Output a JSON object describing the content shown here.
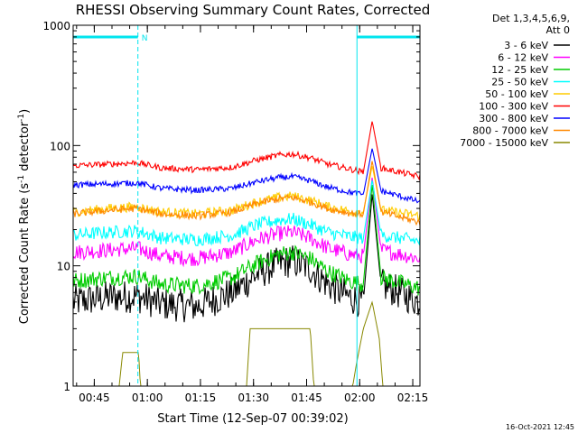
{
  "chart_data": {
    "type": "line",
    "title": "RHESSI Observing Summary Count Rates, Corrected",
    "xlabel": "Start Time (12-Sep-07 00:39:02)",
    "ylabel_main": "Corrected Count Rate (s",
    "ylabel_sup1": "-1",
    "ylabel_mid": " detector",
    "ylabel_sup2": "-1",
    "ylabel_end": ")",
    "yscale": "log",
    "ylim": [
      1,
      1000
    ],
    "xlim": [
      0,
      98
    ],
    "y_ticks": [
      {
        "value": 1,
        "label": "1"
      },
      {
        "value": 10,
        "label": "10"
      },
      {
        "value": 100,
        "label": "100"
      },
      {
        "value": 1000,
        "label": "1000"
      }
    ],
    "x_ticks": [
      {
        "value": 5.97,
        "label": "00:45"
      },
      {
        "value": 20.97,
        "label": "01:00"
      },
      {
        "value": 35.97,
        "label": "01:15"
      },
      {
        "value": 50.97,
        "label": "01:30"
      },
      {
        "value": 65.97,
        "label": "01:45"
      },
      {
        "value": 80.97,
        "label": "02:00"
      },
      {
        "value": 95.97,
        "label": "02:15"
      }
    ],
    "legend": {
      "placement": "right",
      "header1": "Det 1,3,4,5,6,9,",
      "header2": "Att 0"
    },
    "markers": {
      "n_label": "N",
      "night_bars": [
        [
          0,
          18.3
        ],
        [
          80.2,
          98
        ]
      ],
      "dashed_lines": [
        18.3,
        98
      ],
      "solid_lines": [
        80.2
      ]
    },
    "flare": {
      "peak": 84.5
    },
    "series": [
      {
        "name": "3 - 6 keV",
        "color": "#000000",
        "values": [
          [
            0,
            5
          ],
          [
            10,
            5.5
          ],
          [
            18,
            5.6
          ],
          [
            25,
            4.8
          ],
          [
            35,
            4.6
          ],
          [
            45,
            6
          ],
          [
            52,
            8.5
          ],
          [
            58,
            10.5
          ],
          [
            62,
            11
          ],
          [
            67,
            9.5
          ],
          [
            72,
            7
          ],
          [
            78,
            5.5
          ],
          [
            82,
            5
          ],
          [
            84.5,
            40
          ],
          [
            87,
            7
          ],
          [
            98,
            5
          ]
        ]
      },
      {
        "name": "6 - 12 keV",
        "color": "#ff00ff",
        "values": [
          [
            0,
            13
          ],
          [
            10,
            13.5
          ],
          [
            18,
            14
          ],
          [
            25,
            12
          ],
          [
            35,
            11.5
          ],
          [
            45,
            13
          ],
          [
            52,
            16.5
          ],
          [
            58,
            18.5
          ],
          [
            62,
            19
          ],
          [
            67,
            17
          ],
          [
            72,
            14
          ],
          [
            78,
            12.5
          ],
          [
            82,
            12
          ],
          [
            84.5,
            55
          ],
          [
            87,
            13.5
          ],
          [
            98,
            11.5
          ]
        ]
      },
      {
        "name": "12 - 25 keV",
        "color": "#00cc00",
        "values": [
          [
            0,
            7.5
          ],
          [
            10,
            8
          ],
          [
            18,
            8.2
          ],
          [
            25,
            7
          ],
          [
            35,
            6.8
          ],
          [
            45,
            8
          ],
          [
            52,
            10.5
          ],
          [
            58,
            12.5
          ],
          [
            62,
            13
          ],
          [
            67,
            11.5
          ],
          [
            72,
            9
          ],
          [
            78,
            7.5
          ],
          [
            82,
            7
          ],
          [
            84.5,
            48
          ],
          [
            87,
            8
          ],
          [
            98,
            6.5
          ]
        ]
      },
      {
        "name": "25 - 50 keV",
        "color": "#00ffff",
        "values": [
          [
            0,
            18
          ],
          [
            10,
            19
          ],
          [
            18,
            19.5
          ],
          [
            25,
            17
          ],
          [
            35,
            16.5
          ],
          [
            45,
            18
          ],
          [
            52,
            22
          ],
          [
            58,
            24
          ],
          [
            62,
            24.5
          ],
          [
            67,
            22
          ],
          [
            72,
            19
          ],
          [
            78,
            17.5
          ],
          [
            82,
            17
          ],
          [
            84.5,
            52
          ],
          [
            87,
            18
          ],
          [
            98,
            16
          ]
        ]
      },
      {
        "name": "50 - 100 keV",
        "color": "#ffcc00",
        "values": [
          [
            0,
            28
          ],
          [
            10,
            30
          ],
          [
            18,
            31
          ],
          [
            25,
            28
          ],
          [
            35,
            27
          ],
          [
            45,
            29
          ],
          [
            52,
            34
          ],
          [
            58,
            37
          ],
          [
            62,
            38
          ],
          [
            67,
            35
          ],
          [
            72,
            31
          ],
          [
            78,
            28.5
          ],
          [
            82,
            28
          ],
          [
            84.5,
            68
          ],
          [
            87,
            29
          ],
          [
            98,
            26
          ]
        ]
      },
      {
        "name": "100 - 300 keV",
        "color": "#ff0000",
        "values": [
          [
            0,
            68
          ],
          [
            10,
            70
          ],
          [
            18,
            72
          ],
          [
            25,
            65
          ],
          [
            35,
            63
          ],
          [
            45,
            66
          ],
          [
            52,
            76
          ],
          [
            58,
            83
          ],
          [
            62,
            85
          ],
          [
            67,
            79
          ],
          [
            72,
            70
          ],
          [
            78,
            64
          ],
          [
            82,
            60
          ],
          [
            84.5,
            160
          ],
          [
            87,
            65
          ],
          [
            98,
            55
          ]
        ]
      },
      {
        "name": "300 - 800 keV",
        "color": "#0000ff",
        "values": [
          [
            0,
            47
          ],
          [
            10,
            48
          ],
          [
            18,
            49
          ],
          [
            25,
            44
          ],
          [
            35,
            42.5
          ],
          [
            45,
            44
          ],
          [
            52,
            50
          ],
          [
            58,
            54
          ],
          [
            62,
            55
          ],
          [
            67,
            51
          ],
          [
            72,
            45
          ],
          [
            78,
            41
          ],
          [
            82,
            39
          ],
          [
            84.5,
            95
          ],
          [
            87,
            42
          ],
          [
            98,
            34
          ]
        ]
      },
      {
        "name": "800 - 7000 keV",
        "color": "#ff8800",
        "values": [
          [
            0,
            27
          ],
          [
            10,
            29
          ],
          [
            18,
            30
          ],
          [
            25,
            27
          ],
          [
            35,
            26
          ],
          [
            45,
            28
          ],
          [
            52,
            33
          ],
          [
            58,
            36
          ],
          [
            62,
            37
          ],
          [
            67,
            34
          ],
          [
            72,
            30
          ],
          [
            78,
            27.5
          ],
          [
            82,
            27
          ],
          [
            84.5,
            75
          ],
          [
            87,
            28
          ],
          [
            98,
            23
          ]
        ]
      },
      {
        "name": "7000 - 15000 keV",
        "color": "#888800",
        "values": [
          [
            0,
            1
          ],
          [
            13,
            1
          ],
          [
            14,
            1.9
          ],
          [
            18.5,
            1.9
          ],
          [
            19,
            1
          ],
          [
            49,
            1
          ],
          [
            50,
            3
          ],
          [
            67,
            3
          ],
          [
            68,
            1
          ],
          [
            79,
            1
          ],
          [
            80,
            1.5
          ],
          [
            82,
            3
          ],
          [
            84.5,
            5
          ],
          [
            86.5,
            2.5
          ],
          [
            87.5,
            1
          ],
          [
            98,
            1
          ]
        ]
      }
    ]
  },
  "footer_timestamp": "16-Oct-2021 12:45"
}
